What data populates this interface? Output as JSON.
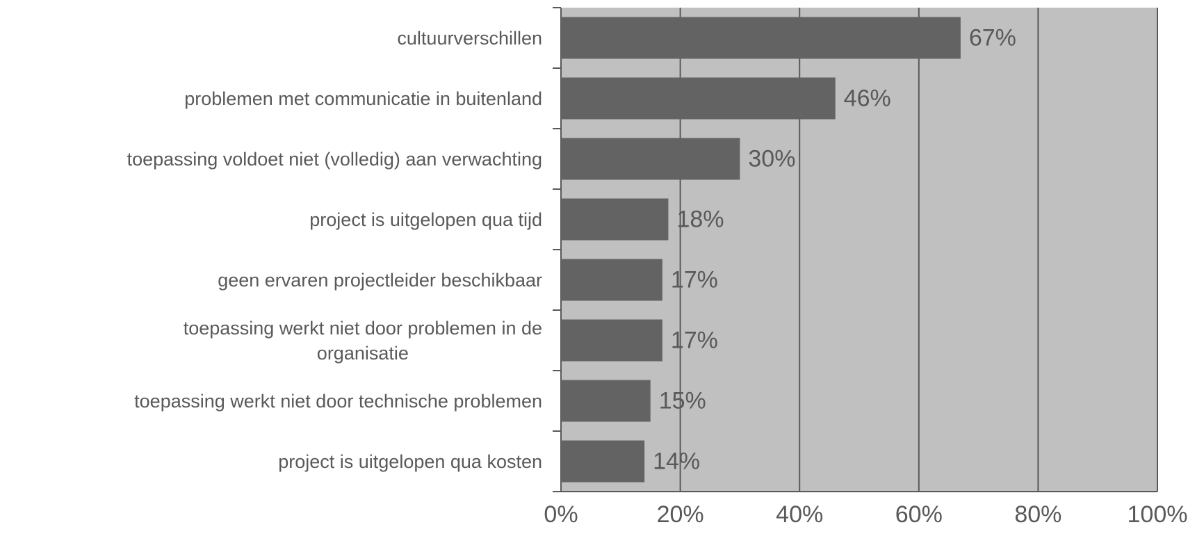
{
  "chart_data": {
    "type": "bar",
    "orientation": "horizontal",
    "categories": [
      "cultuurverschillen",
      "problemen met communicatie in buitenland",
      "toepassing voldoet niet (volledig) aan verwachting",
      "project is uitgelopen qua tijd",
      "geen ervaren projectleider beschikbaar",
      "toepassing werkt niet door problemen in de\norganisatie",
      "toepassing werkt niet door technische problemen",
      "project is uitgelopen qua kosten"
    ],
    "values": [
      67,
      46,
      30,
      18,
      17,
      17,
      15,
      14
    ],
    "value_labels": [
      "67%",
      "46%",
      "30%",
      "18%",
      "17%",
      "17%",
      "15%",
      "14%"
    ],
    "color": "#636363",
    "xlim": [
      0,
      100
    ],
    "xticks": [
      {
        "value": 0,
        "label": "0%"
      },
      {
        "value": 20,
        "label": "20%"
      },
      {
        "value": 40,
        "label": "40%"
      },
      {
        "value": 60,
        "label": "60%"
      },
      {
        "value": 80,
        "label": "80%"
      },
      {
        "value": 100,
        "label": "100%"
      }
    ],
    "grid": true
  }
}
